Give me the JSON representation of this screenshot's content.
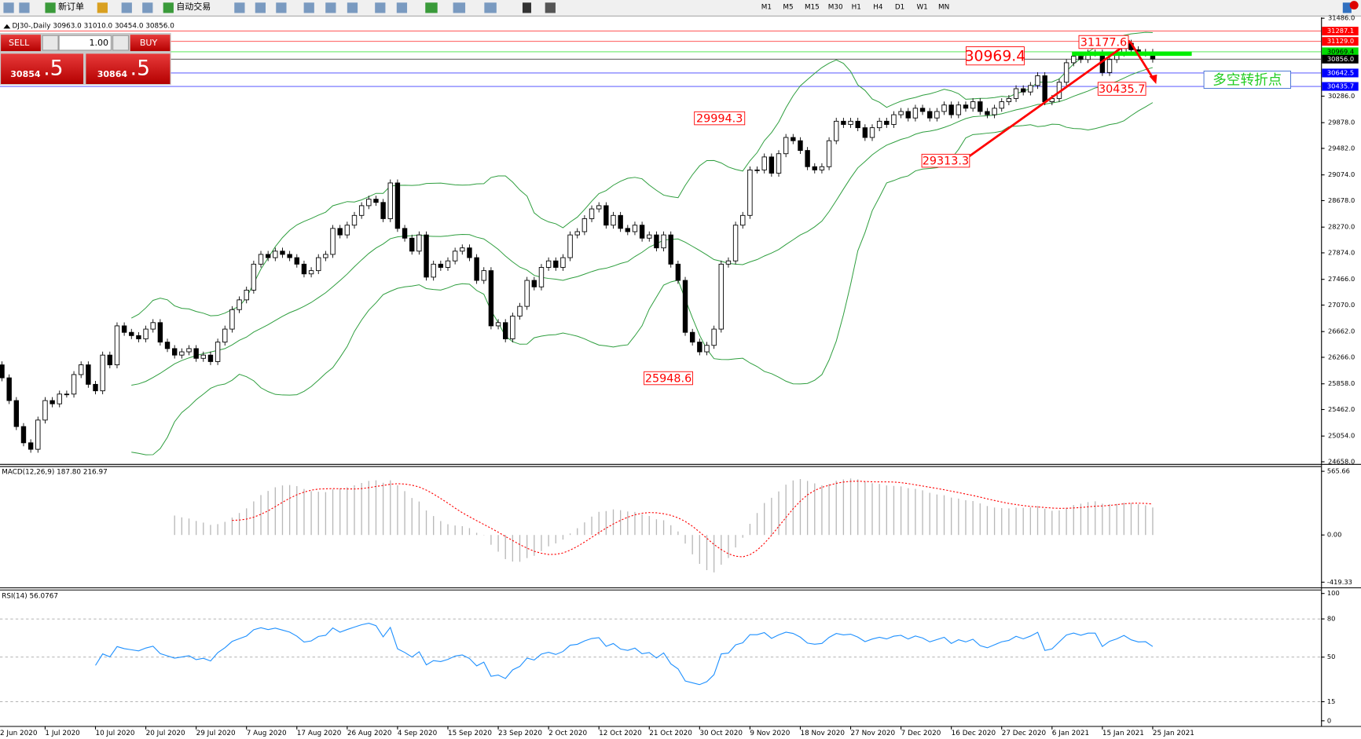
{
  "toolbar": {
    "new_order": "新订单",
    "auto_trading": "自动交易",
    "timeframes": [
      "M1",
      "M5",
      "M15",
      "M30",
      "H1",
      "H4",
      "D1",
      "W1",
      "MN"
    ]
  },
  "trade_panel": {
    "sell": "SELL",
    "lots": "1.00",
    "buy": "BUY",
    "sell_price": [
      "30854",
      ".5"
    ],
    "buy_price": [
      "30864",
      ".5"
    ]
  },
  "chart_data": {
    "type": "candlestick",
    "title": "DJ30-,Daily  30963.0 31010.0 30454.0 30856.0",
    "x": [
      "2 Jun 2020",
      null,
      null,
      null,
      null,
      null,
      null,
      "1 Jul 2020",
      null,
      null,
      null,
      null,
      null,
      null,
      "10 Jul 2020",
      null,
      null,
      null,
      null,
      null,
      null,
      "20 Jul 2020",
      null,
      null,
      null,
      null,
      null,
      null,
      "29 Jul 2020",
      null,
      null,
      null,
      null,
      null,
      null,
      "7 Aug 2020",
      null,
      null,
      null,
      null,
      null,
      null,
      "17 Aug 2020",
      null,
      null,
      null,
      null,
      null,
      null,
      "26 Aug 2020",
      null,
      null,
      null,
      null,
      null,
      null,
      "4 Sep 2020",
      null,
      null,
      null,
      null,
      null,
      null,
      "15 Sep 2020",
      null,
      null,
      null,
      null,
      null,
      null,
      "23 Sep 2020",
      null,
      null,
      null,
      null,
      null,
      null,
      "2 Oct 2020",
      null,
      null,
      null,
      null,
      null,
      null,
      "12 Oct 2020",
      null,
      null,
      null,
      null,
      null,
      null,
      "21 Oct 2020",
      null,
      null,
      null,
      null,
      null,
      null,
      "30 Oct 2020",
      null,
      null,
      null,
      null,
      null,
      null,
      "9 Nov 2020",
      null,
      null,
      null,
      null,
      null,
      null,
      "18 Nov 2020",
      null,
      null,
      null,
      null,
      null,
      null,
      "27 Nov 2020",
      null,
      null,
      null,
      null,
      null,
      null,
      "7 Dec 2020",
      null,
      null,
      null,
      null,
      null,
      null,
      "16 Dec 2020",
      null,
      null,
      null,
      null,
      null,
      null,
      "27 Dec 2020",
      null,
      null,
      null,
      null,
      null,
      null,
      "6 Jan 2021",
      null,
      null,
      null,
      null,
      null,
      null,
      "15 Jan 2021",
      null,
      null,
      null,
      null,
      null,
      null,
      "25 Jan 2021"
    ],
    "values": [
      26150,
      25950,
      25600,
      25200,
      24950,
      24850,
      25300,
      25600,
      25550,
      25700,
      25700,
      26000,
      26150,
      25850,
      25750,
      26300,
      26150,
      26750,
      26650,
      26600,
      26550,
      26700,
      26800,
      26500,
      26400,
      26300,
      26350,
      26400,
      26250,
      26300,
      26200,
      26500,
      26700,
      27000,
      27150,
      27300,
      27700,
      27850,
      27800,
      27900,
      27850,
      27800,
      27700,
      27550,
      27600,
      27800,
      27850,
      28250,
      28150,
      28300,
      28450,
      28600,
      28700,
      28650,
      28400,
      28950,
      28250,
      28100,
      27900,
      28150,
      27500,
      27700,
      27650,
      27750,
      27900,
      27950,
      27800,
      27450,
      27600,
      26750,
      26800,
      26550,
      26900,
      27050,
      27450,
      27350,
      27650,
      27750,
      27650,
      27800,
      28150,
      28200,
      28400,
      28550,
      28600,
      28300,
      28450,
      28250,
      28200,
      28300,
      28100,
      28150,
      27950,
      28150,
      27700,
      27450,
      26650,
      26500,
      26350,
      26450,
      26700,
      27700,
      27750,
      28300,
      28450,
      29150,
      29150,
      29350,
      29100,
      29400,
      29650,
      29600,
      29450,
      29200,
      29150,
      29200,
      29600,
      29900,
      29850,
      29900,
      29800,
      29650,
      29800,
      29900,
      29850,
      30000,
      30050,
      29950,
      30100,
      30050,
      29950,
      30050,
      30150,
      30000,
      30150,
      30100,
      30200,
      30050,
      30000,
      30100,
      30200,
      30250,
      30400,
      30350,
      30450,
      30600,
      30200,
      30250,
      30500,
      30800,
      30900,
      30850,
      30950,
      30950,
      30650,
      30850,
      30950,
      31100,
      31000,
      30950,
      30960,
      30856
    ],
    "ylim": [
      24658,
      31486
    ],
    "yticks": [
      {
        "value": 31486,
        "label": "31486.0"
      },
      {
        "value": 30286,
        "label": "30286.0"
      },
      {
        "value": 29878,
        "label": "29878.0"
      },
      {
        "value": 29482,
        "label": "29482.0"
      },
      {
        "value": 29074,
        "label": "29074.0"
      },
      {
        "value": 28678,
        "label": "28678.0"
      },
      {
        "value": 28270,
        "label": "28270.0"
      },
      {
        "value": 27874,
        "label": "27874.0"
      },
      {
        "value": 27466,
        "label": "27466.0"
      },
      {
        "value": 27070,
        "label": "27070.0"
      },
      {
        "value": 26662,
        "label": "26662.0"
      },
      {
        "value": 26266,
        "label": "26266.0"
      },
      {
        "value": 25858,
        "label": "25858.0"
      },
      {
        "value": 25462,
        "label": "25462.0"
      },
      {
        "value": 25054,
        "label": "25054.0"
      },
      {
        "value": 24658,
        "label": "24658.0"
      }
    ],
    "up_color": "#ffffff",
    "down_color": "#000000",
    "bands_color": "#2e9e3e",
    "price_lines": [
      {
        "value": 31287.1,
        "label": "31287.1",
        "color": "#ff0000"
      },
      {
        "value": 31129,
        "label": "31129.0",
        "color": "#ff0000"
      },
      {
        "value": 30969.4,
        "label": "30969.4",
        "color": "#00dd00"
      },
      {
        "value": 30856,
        "label": "30856.0",
        "color": "#000000"
      },
      {
        "value": 30642.5,
        "label": "30642.5",
        "color": "#0000ff"
      },
      {
        "value": 30435.7,
        "label": "30435.7",
        "color": "#0000ff"
      }
    ],
    "annotations": [
      {
        "text": "30969.4",
        "color": "#ff0000"
      },
      {
        "text": "31177.6",
        "color": "#ff0000"
      },
      {
        "text": "30435.7",
        "color": "#ff0000"
      },
      {
        "text": "29994.3",
        "color": "#ff0000"
      },
      {
        "text": "29313.3",
        "color": "#ff0000"
      },
      {
        "text": "25948.6",
        "color": "#ff0000"
      },
      {
        "text": "多空转折点",
        "color": "#22cc22"
      }
    ],
    "macd": {
      "title": "MACD(12,26,9) 187.80 216.97",
      "ylim": [
        -419.33,
        565.66
      ],
      "yticks": [
        {
          "value": 565.66,
          "label": "565.66"
        },
        {
          "value": 0,
          "label": "0.00"
        },
        {
          "value": -419.33,
          "label": "-419.33"
        }
      ],
      "hist_color": "#b8b8b8",
      "signal_color": "#ff0000"
    },
    "rsi": {
      "title": "RSI(14) 56.0767",
      "ylim": [
        0,
        100
      ],
      "yticks": [
        100,
        80,
        50,
        15,
        0
      ],
      "color": "#1e90ff"
    }
  }
}
